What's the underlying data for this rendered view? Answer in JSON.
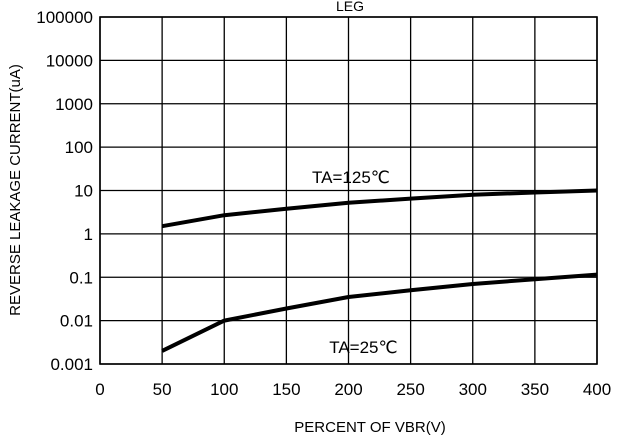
{
  "chart_data": {
    "type": "line",
    "title": "LEG",
    "xlabel": "PERCENT OF VBR(V)",
    "ylabel": "REVERSE LEAKAGE CURRENT(uA)",
    "xlim": [
      0,
      400
    ],
    "ylim": [
      0.001,
      100000
    ],
    "y_scale": "log",
    "grid": true,
    "x_ticks": [
      0,
      50,
      100,
      150,
      200,
      250,
      300,
      350,
      400
    ],
    "x_tick_labels": [
      "0",
      "50",
      "100",
      "150",
      "200",
      "250",
      "300",
      "350",
      "400"
    ],
    "y_ticks": [
      0.001,
      0.01,
      0.1,
      1,
      10,
      100,
      1000,
      10000,
      100000
    ],
    "y_tick_labels": [
      "0.001",
      "0.01",
      "0.1",
      "1",
      "10",
      "100",
      "1000",
      "10000",
      "100000"
    ],
    "series": [
      {
        "x": [
          50,
          100,
          150,
          200,
          250,
          300,
          350,
          400
        ],
        "y": [
          1.5,
          2.7,
          3.8,
          5.2,
          6.5,
          8.0,
          9.0,
          10.0
        ]
      },
      {
        "x": [
          50,
          100,
          150,
          200,
          250,
          300,
          350,
          400
        ],
        "y": [
          0.002,
          0.01,
          0.019,
          0.035,
          0.05,
          0.07,
          0.09,
          0.115
        ]
      }
    ],
    "annotations": [
      {
        "text": "TA=125℃",
        "x": 202,
        "y": 15
      },
      {
        "text": "TA=25℃",
        "x": 212,
        "y": 0.0018
      }
    ],
    "line_color": "#000000"
  }
}
